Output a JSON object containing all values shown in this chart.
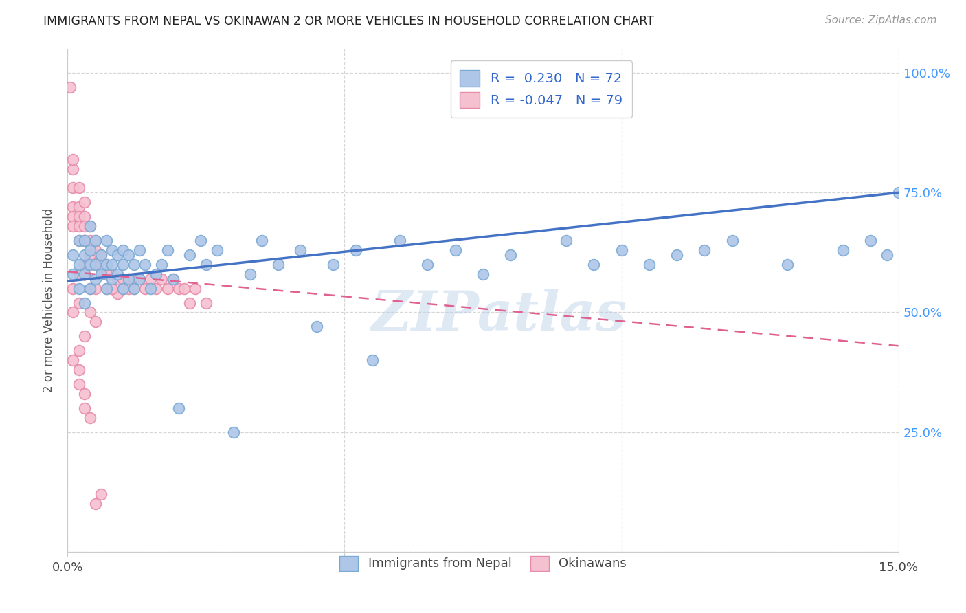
{
  "title": "IMMIGRANTS FROM NEPAL VS OKINAWAN 2 OR MORE VEHICLES IN HOUSEHOLD CORRELATION CHART",
  "source": "Source: ZipAtlas.com",
  "ylabel": "2 or more Vehicles in Household",
  "legend1_r": " 0.230",
  "legend1_n": "72",
  "legend2_r": "-0.047",
  "legend2_n": "79",
  "series1_color": "#aec6e8",
  "series1_edge": "#7aaad4",
  "series2_color": "#f5c0d0",
  "series2_edge": "#e88aaa",
  "line1_color": "#4472c4",
  "line2_color": "#e06090",
  "watermark": "ZIPatlas",
  "nepal_x": [
    0.001,
    0.001,
    0.002,
    0.002,
    0.002,
    0.003,
    0.003,
    0.003,
    0.003,
    0.004,
    0.004,
    0.004,
    0.004,
    0.005,
    0.005,
    0.005,
    0.006,
    0.006,
    0.007,
    0.007,
    0.007,
    0.008,
    0.008,
    0.008,
    0.009,
    0.009,
    0.01,
    0.01,
    0.01,
    0.011,
    0.011,
    0.012,
    0.012,
    0.013,
    0.013,
    0.014,
    0.015,
    0.016,
    0.017,
    0.018,
    0.019,
    0.02,
    0.022,
    0.024,
    0.025,
    0.027,
    0.03,
    0.033,
    0.035,
    0.038,
    0.042,
    0.045,
    0.048,
    0.052,
    0.055,
    0.06,
    0.065,
    0.07,
    0.075,
    0.08,
    0.09,
    0.095,
    0.1,
    0.11,
    0.12,
    0.13,
    0.14,
    0.145,
    0.148,
    0.15,
    0.105,
    0.115
  ],
  "nepal_y": [
    0.58,
    0.62,
    0.55,
    0.6,
    0.65,
    0.52,
    0.58,
    0.62,
    0.65,
    0.55,
    0.6,
    0.63,
    0.68,
    0.57,
    0.6,
    0.65,
    0.58,
    0.62,
    0.55,
    0.6,
    0.65,
    0.57,
    0.6,
    0.63,
    0.58,
    0.62,
    0.55,
    0.6,
    0.63,
    0.57,
    0.62,
    0.55,
    0.6,
    0.57,
    0.63,
    0.6,
    0.55,
    0.58,
    0.6,
    0.63,
    0.57,
    0.3,
    0.62,
    0.65,
    0.6,
    0.63,
    0.25,
    0.58,
    0.65,
    0.6,
    0.63,
    0.47,
    0.6,
    0.63,
    0.4,
    0.65,
    0.6,
    0.63,
    0.58,
    0.62,
    0.65,
    0.6,
    0.63,
    0.62,
    0.65,
    0.6,
    0.63,
    0.65,
    0.62,
    0.75,
    0.6,
    0.63
  ],
  "okinawa_x": [
    0.0005,
    0.001,
    0.001,
    0.001,
    0.001,
    0.001,
    0.001,
    0.002,
    0.002,
    0.002,
    0.002,
    0.002,
    0.003,
    0.003,
    0.003,
    0.003,
    0.004,
    0.004,
    0.004,
    0.005,
    0.005,
    0.005,
    0.006,
    0.006,
    0.006,
    0.007,
    0.007,
    0.007,
    0.008,
    0.008,
    0.009,
    0.009,
    0.01,
    0.01,
    0.011,
    0.011,
    0.012,
    0.012,
    0.013,
    0.014,
    0.015,
    0.016,
    0.017,
    0.018,
    0.019,
    0.02,
    0.021,
    0.022,
    0.023,
    0.025,
    0.003,
    0.004,
    0.005,
    0.002,
    0.003,
    0.004,
    0.006,
    0.007,
    0.008,
    0.001,
    0.001,
    0.002,
    0.002,
    0.003,
    0.003,
    0.004,
    0.005,
    0.006,
    0.002,
    0.003,
    0.004,
    0.005,
    0.003,
    0.004,
    0.002,
    0.001,
    0.003,
    0.005,
    0.006
  ],
  "okinawa_y": [
    0.97,
    0.8,
    0.82,
    0.76,
    0.72,
    0.7,
    0.68,
    0.76,
    0.72,
    0.7,
    0.68,
    0.65,
    0.73,
    0.7,
    0.68,
    0.65,
    0.68,
    0.65,
    0.62,
    0.65,
    0.62,
    0.6,
    0.62,
    0.6,
    0.58,
    0.6,
    0.58,
    0.55,
    0.58,
    0.55,
    0.57,
    0.54,
    0.57,
    0.55,
    0.57,
    0.55,
    0.57,
    0.55,
    0.57,
    0.55,
    0.57,
    0.55,
    0.57,
    0.55,
    0.57,
    0.55,
    0.55,
    0.52,
    0.55,
    0.52,
    0.58,
    0.55,
    0.55,
    0.52,
    0.58,
    0.62,
    0.6,
    0.58,
    0.55,
    0.5,
    0.4,
    0.38,
    0.35,
    0.33,
    0.3,
    0.28,
    0.1,
    0.12,
    0.42,
    0.45,
    0.5,
    0.48,
    0.6,
    0.62,
    0.58,
    0.55,
    0.65,
    0.63,
    0.6
  ],
  "xmin": 0.0,
  "xmax": 0.15,
  "ymin": 0.0,
  "ymax": 1.05,
  "yticks": [
    0.0,
    0.25,
    0.5,
    0.75,
    1.0
  ],
  "ytick_strs": [
    "",
    "25.0%",
    "50.0%",
    "75.0%",
    "100.0%"
  ],
  "xtick_positions": [
    0.0,
    0.05,
    0.1,
    0.15
  ],
  "xtick_labels": [
    "0.0%",
    "",
    "",
    "15.0%"
  ],
  "grid_color": "#cccccc",
  "background_color": "#ffffff"
}
